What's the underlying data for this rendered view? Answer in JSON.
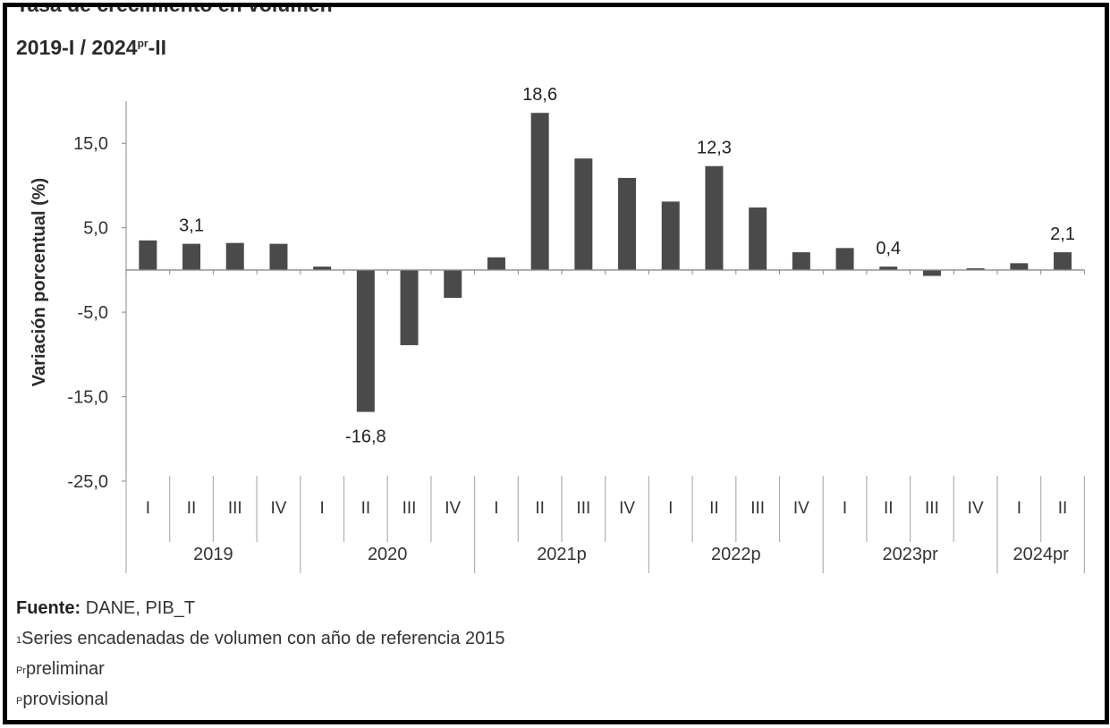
{
  "title": "Tasa de crecimiento en volumen",
  "subtitle": {
    "period_start": "2019-I / 2024",
    "suffix_sup": "pr",
    "period_end": "-II"
  },
  "footnotes": {
    "source_label": "Fuente:",
    "source_text": "DANE, PIB_T",
    "note1_mark": "1",
    "note1_text": "Series encadenadas de volumen con año de referencia 2015",
    "note2_mark": "Pr",
    "note2_text": "preliminar",
    "note3_mark": "P",
    "note3_text": "provisional"
  },
  "chart_data": {
    "type": "bar",
    "ylabel": "Variación porcentual (%)",
    "xlabel": "",
    "ylim": [
      -25,
      20
    ],
    "yticks": [
      15,
      5,
      -5,
      -15,
      -25
    ],
    "ytick_labels": [
      "15,0",
      "5,0",
      "-5,0",
      "-15,0",
      "-25,0"
    ],
    "bar_color": "#4a4a4a",
    "grid": false,
    "legend": "none",
    "groups": [
      {
        "label": "2019",
        "quarters": [
          "I",
          "II",
          "III",
          "IV"
        ]
      },
      {
        "label": "2020",
        "quarters": [
          "I",
          "II",
          "III",
          "IV"
        ]
      },
      {
        "label": "2021p",
        "quarters": [
          "I",
          "II",
          "III",
          "IV"
        ]
      },
      {
        "label": "2022p",
        "quarters": [
          "I",
          "II",
          "III",
          "IV"
        ]
      },
      {
        "label": "2023pr",
        "quarters": [
          "I",
          "II",
          "III",
          "IV"
        ]
      },
      {
        "label": "2024pr",
        "quarters": [
          "I",
          "II"
        ]
      }
    ],
    "values": [
      3.5,
      3.1,
      3.2,
      3.1,
      0.4,
      -16.8,
      -8.9,
      -3.3,
      1.5,
      18.6,
      13.2,
      10.9,
      8.1,
      12.3,
      7.4,
      2.1,
      2.6,
      0.4,
      -0.7,
      0.2,
      0.8,
      2.1
    ],
    "data_labels": [
      {
        "index": 1,
        "text": "3,1"
      },
      {
        "index": 5,
        "text": "-16,8"
      },
      {
        "index": 9,
        "text": "18,6"
      },
      {
        "index": 13,
        "text": "12,3"
      },
      {
        "index": 17,
        "text": "0,4"
      },
      {
        "index": 21,
        "text": "2,1"
      }
    ]
  }
}
